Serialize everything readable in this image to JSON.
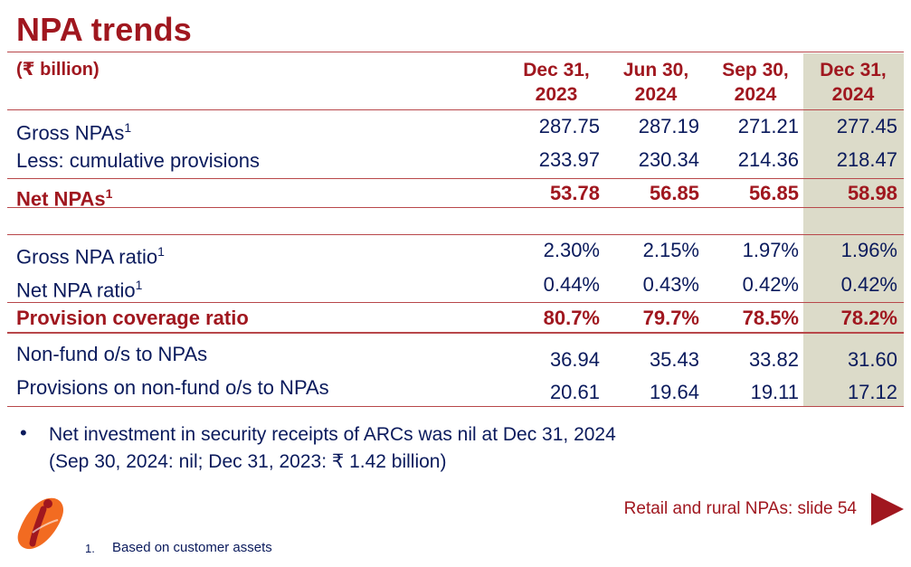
{
  "title": "NPA trends",
  "unit": "(₹ billion)",
  "columns": [
    {
      "line1": "Dec 31,",
      "line2": "2023"
    },
    {
      "line1": "Jun 30,",
      "line2": "2024"
    },
    {
      "line1": "Sep 30,",
      "line2": "2024"
    },
    {
      "line1": "Dec 31,",
      "line2": "2024"
    }
  ],
  "rows": [
    {
      "label": "Gross NPAs",
      "sup": "1",
      "values": [
        "287.75",
        "287.19",
        "271.21",
        "277.45"
      ]
    },
    {
      "label": "Less: cumulative provisions",
      "sup": "",
      "values": [
        "233.97",
        "230.34",
        "214.36",
        "218.47"
      ]
    },
    {
      "label": "Net NPAs",
      "sup": "1",
      "values": [
        "53.78",
        "56.85",
        "56.85",
        "58.98"
      ]
    },
    {
      "label": "Gross NPA ratio",
      "sup": "1",
      "values": [
        "2.30%",
        "2.15%",
        "1.97%",
        "1.96%"
      ]
    },
    {
      "label": "Net NPA ratio",
      "sup": "1",
      "values": [
        "0.44%",
        "0.43%",
        "0.42%",
        "0.42%"
      ]
    },
    {
      "label": "Provision coverage ratio",
      "sup": "",
      "values": [
        "80.7%",
        "79.7%",
        "78.5%",
        "78.2%"
      ]
    },
    {
      "label": "Non-fund o/s to NPAs",
      "sup": "",
      "values": [
        "36.94",
        "35.43",
        "33.82",
        "31.60"
      ]
    },
    {
      "label": "Provisions on non-fund o/s to NPAs",
      "sup": "",
      "values": [
        "20.61",
        "19.64",
        "19.11",
        "17.12"
      ]
    }
  ],
  "bullet": {
    "line1": "Net investment in security receipts of ARCs was nil at Dec 31, 2024",
    "line2": "(Sep 30, 2024: nil; Dec 31, 2023: ₹ 1.42 billion)"
  },
  "link_text": "Retail and rural NPAs: slide 54",
  "footnote": {
    "num": "1.",
    "text": "Based on customer assets"
  },
  "colors": {
    "accent": "#a0171f",
    "text": "#0a1a5c",
    "highlight": "#dcdbc9",
    "logo_orange": "#f26b21"
  },
  "logo_icon": "bank-logo-icon"
}
